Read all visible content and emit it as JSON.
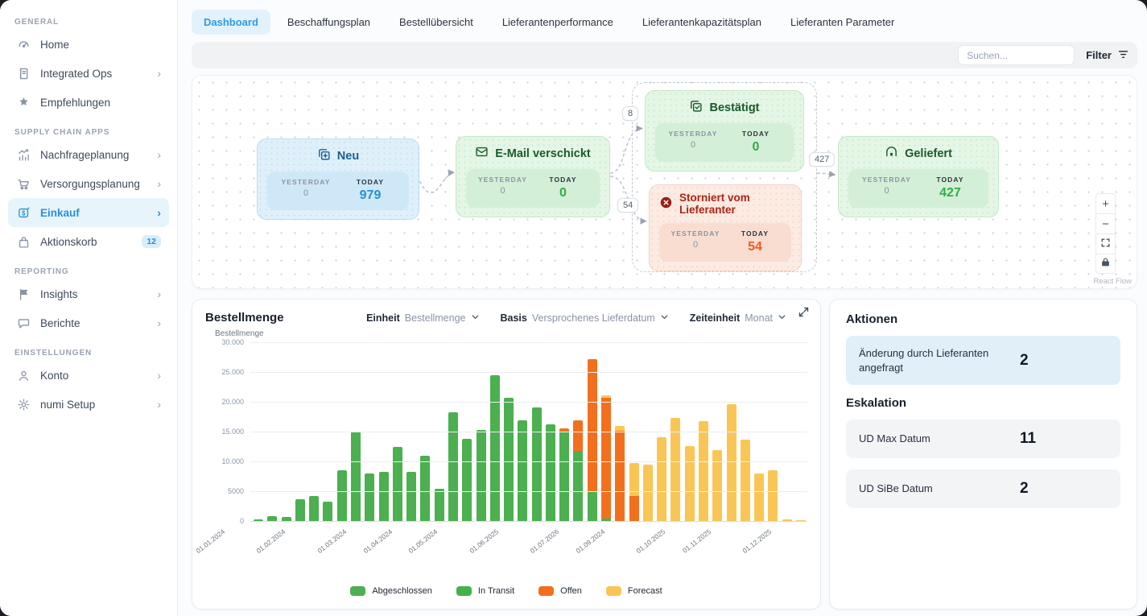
{
  "sidebar": {
    "sections": [
      {
        "label": "GENERAL",
        "items": [
          {
            "label": "Home",
            "icon": "gauge",
            "chevron": false
          },
          {
            "label": "Integrated Ops",
            "icon": "book",
            "chevron": true
          },
          {
            "label": "Empfehlungen",
            "icon": "star-badge",
            "chevron": false
          }
        ]
      },
      {
        "label": "SUPPLY CHAIN APPS",
        "items": [
          {
            "label": "Nachfrageplanung",
            "icon": "trend-chart",
            "chevron": true
          },
          {
            "label": "Versorgungsplanung",
            "icon": "cart",
            "chevron": true
          },
          {
            "label": "Einkauf",
            "icon": "dollar-tag",
            "chevron": true,
            "active": true
          },
          {
            "label": "Aktionskorb",
            "icon": "bag",
            "chevron": false,
            "badge": "12"
          }
        ]
      },
      {
        "label": "REPORTING",
        "items": [
          {
            "label": "Insights",
            "icon": "flag",
            "chevron": true
          },
          {
            "label": "Berichte",
            "icon": "chat",
            "chevron": true
          }
        ]
      },
      {
        "label": "EINSTELLUNGEN",
        "items": [
          {
            "label": "Konto",
            "icon": "person",
            "chevron": true
          },
          {
            "label": "numi Setup",
            "icon": "gear",
            "chevron": true
          }
        ]
      }
    ]
  },
  "tabs": [
    {
      "label": "Dashboard",
      "active": true
    },
    {
      "label": "Beschaffungsplan",
      "active": false
    },
    {
      "label": "Bestellübersicht",
      "active": false
    },
    {
      "label": "Lieferantenperformance",
      "active": false
    },
    {
      "label": "Lieferantenkapazitätsplan",
      "active": false
    },
    {
      "label": "Lieferanten Parameter",
      "active": false
    }
  ],
  "toolbar": {
    "search_placeholder": "Suchen...",
    "filter_label": "Filter",
    "filter_icon": "filter-icon",
    "search_icon": "none"
  },
  "flow": {
    "yesterday_label": "YESTERDAY",
    "today_label": "TODAY",
    "nodes": [
      {
        "id": "neu",
        "title": "Neu",
        "icon": "plus-square-icon",
        "color": "blue",
        "yesterday": "0",
        "today": "979"
      },
      {
        "id": "email",
        "title": "E-Mail verschickt",
        "icon": "mail-icon",
        "color": "green",
        "yesterday": "0",
        "today": "0"
      },
      {
        "id": "bestaetigt",
        "title": "Bestätigt",
        "icon": "check-square-icon",
        "color": "green",
        "yesterday": "0",
        "today": "0"
      },
      {
        "id": "storniert",
        "title": "Storniert vom Lieferanter",
        "icon": "x-circle-icon",
        "color": "red",
        "yesterday": "0",
        "today": "54"
      },
      {
        "id": "geliefert",
        "title": "Geliefert",
        "icon": "warehouse-icon",
        "color": "green",
        "yesterday": "0",
        "today": "427"
      }
    ],
    "edge_labels": [
      {
        "text": "8"
      },
      {
        "text": "54"
      },
      {
        "text": "427"
      }
    ],
    "controls": [
      "zoom-in",
      "zoom-out",
      "fit-view",
      "lock"
    ],
    "attribution": "React Flow"
  },
  "chart": {
    "title": "Bestellmenge",
    "unit_label": "Einheit",
    "unit_value": "Bestellmenge",
    "basis_label": "Basis",
    "basis_value": "Versprochenes Lieferdatum",
    "timeunit_label": "Zeiteinheit",
    "timeunit_value": "Monat",
    "expand_icon": "expand-icon"
  },
  "chart_data": {
    "type": "bar",
    "stacked": true,
    "title": "Bestellmenge",
    "ylabel": "Bestellmenge",
    "ylim": [
      0,
      30000
    ],
    "ytick_labels": [
      "30.000",
      "25.000",
      "20.000",
      "15.000",
      "10.000",
      "5000",
      "0"
    ],
    "grid": true,
    "legend_position": "bottom",
    "series_order": [
      "green",
      "orange",
      "yellow"
    ],
    "legend": [
      {
        "name": "Abgeschlossen",
        "color": "#4caf50"
      },
      {
        "name": "In Transit",
        "color": "#46b14c"
      },
      {
        "name": "Offen",
        "color": "#f2701d"
      },
      {
        "name": "Forecast",
        "color": "#f9c656"
      }
    ],
    "bars": [
      [
        300,
        0,
        0
      ],
      [
        800,
        0,
        0
      ],
      [
        700,
        0,
        0
      ],
      [
        3600,
        0,
        0
      ],
      [
        4200,
        0,
        0
      ],
      [
        3300,
        0,
        0
      ],
      [
        8500,
        0,
        0
      ],
      [
        15000,
        0,
        0
      ],
      [
        8000,
        0,
        0
      ],
      [
        8300,
        0,
        0
      ],
      [
        12400,
        0,
        0
      ],
      [
        8200,
        0,
        0
      ],
      [
        11000,
        0,
        0
      ],
      [
        5400,
        0,
        0
      ],
      [
        18300,
        0,
        0
      ],
      [
        13800,
        0,
        0
      ],
      [
        15300,
        0,
        0
      ],
      [
        24500,
        0,
        0
      ],
      [
        20700,
        0,
        0
      ],
      [
        16900,
        0,
        0
      ],
      [
        19100,
        0,
        0
      ],
      [
        16200,
        0,
        0
      ],
      [
        15000,
        600,
        0
      ],
      [
        11700,
        5200,
        0
      ],
      [
        5000,
        22200,
        0
      ],
      [
        400,
        20300,
        400
      ],
      [
        0,
        15100,
        900
      ],
      [
        0,
        4200,
        5500
      ],
      [
        0,
        0,
        9400
      ],
      [
        0,
        0,
        14100
      ],
      [
        0,
        0,
        17300
      ],
      [
        0,
        0,
        12600
      ],
      [
        0,
        0,
        16800
      ],
      [
        0,
        0,
        11900
      ],
      [
        0,
        0,
        19600
      ],
      [
        0,
        0,
        13600
      ],
      [
        0,
        0,
        8000
      ],
      [
        0,
        0,
        8500
      ],
      [
        0,
        0,
        300
      ],
      [
        0,
        0,
        200
      ]
    ],
    "xtick_labels": [
      {
        "i": 0,
        "label": "01.01.2024"
      },
      {
        "i": 4,
        "label": "01.02.2024"
      },
      {
        "i": 8,
        "label": "01.03.2024"
      },
      {
        "i": 11,
        "label": "01.04.2024"
      },
      {
        "i": 14,
        "label": "01.05.2024"
      },
      {
        "i": 18,
        "label": "01.06.2025"
      },
      {
        "i": 22,
        "label": "01.07.2026"
      },
      {
        "i": 25,
        "label": "01.09.2024"
      },
      {
        "i": 29,
        "label": "01.10.2025"
      },
      {
        "i": 32,
        "label": "01.11.2025"
      },
      {
        "i": 36,
        "label": "01.12.2025"
      }
    ]
  },
  "actions": {
    "title": "Aktionen",
    "cards": [
      {
        "label": "Änderung durch Lieferanten angefragt",
        "value": "2"
      }
    ],
    "escalation_title": "Eskalation",
    "escalation": [
      {
        "label": "UD Max Datum",
        "value": "11"
      },
      {
        "label": "UD SiBe Datum",
        "value": "2"
      }
    ]
  }
}
